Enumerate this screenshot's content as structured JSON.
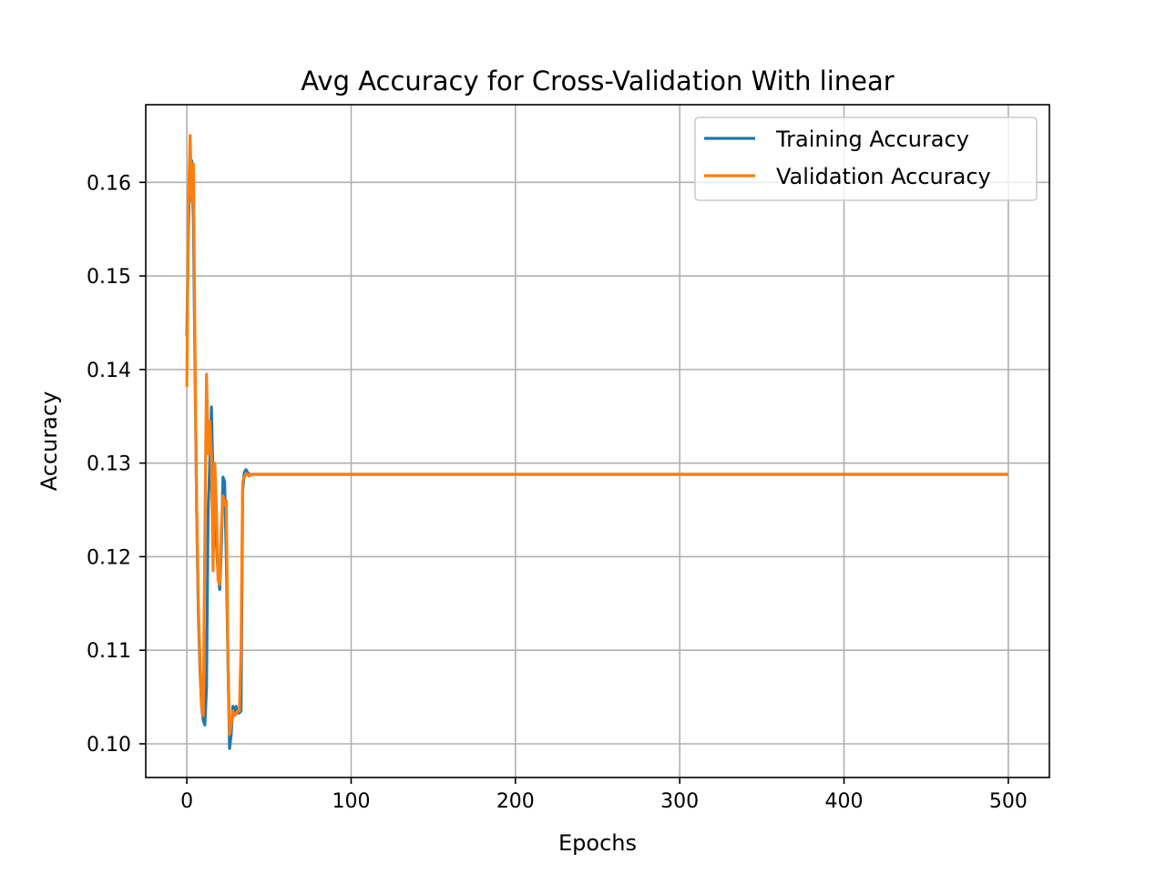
{
  "chart_data": {
    "type": "line",
    "title": "Avg Accuracy for Cross-Validation With linear",
    "xlabel": "Epochs",
    "ylabel": "Accuracy",
    "xlim": [
      -25,
      525
    ],
    "ylim": [
      0.0964,
      0.1683
    ],
    "xticks": [
      0,
      100,
      200,
      300,
      400,
      500
    ],
    "yticks": [
      0.1,
      0.11,
      0.12,
      0.13,
      0.14,
      0.15,
      0.16
    ],
    "xtick_labels": [
      "0",
      "100",
      "200",
      "300",
      "400",
      "500"
    ],
    "ytick_labels": [
      "0.10",
      "0.11",
      "0.12",
      "0.13",
      "0.14",
      "0.15",
      "0.16"
    ],
    "grid": true,
    "legend_position": "top-right",
    "series": [
      {
        "name": "Training Accuracy",
        "color": "#1f77b4",
        "x": [
          0,
          1,
          2,
          3,
          4,
          5,
          6,
          7,
          8,
          9,
          10,
          11,
          12,
          13,
          14,
          15,
          16,
          17,
          18,
          19,
          20,
          21,
          22,
          23,
          24,
          25,
          26,
          27,
          28,
          29,
          30,
          31,
          32,
          33,
          34,
          35,
          36,
          37,
          38,
          39,
          40,
          42,
          44,
          46,
          48,
          50,
          60,
          100,
          200,
          300,
          400,
          499
        ],
        "y": [
          0.1437,
          0.155,
          0.1625,
          0.1623,
          0.156,
          0.14,
          0.125,
          0.114,
          0.108,
          0.104,
          0.1025,
          0.102,
          0.106,
          0.125,
          0.13,
          0.136,
          0.128,
          0.122,
          0.1215,
          0.118,
          0.1165,
          0.121,
          0.1285,
          0.128,
          0.12,
          0.109,
          0.0995,
          0.101,
          0.104,
          0.1035,
          0.104,
          0.1033,
          0.1033,
          0.1035,
          0.127,
          0.129,
          0.1293,
          0.129,
          0.1288,
          0.1287,
          0.1288,
          0.1288,
          0.1288,
          0.1288,
          0.1288,
          0.1288,
          0.1288,
          0.1288,
          0.1288,
          0.1288,
          0.1288,
          0.1288
        ]
      },
      {
        "name": "Validation Accuracy",
        "color": "#ff7f0e",
        "x": [
          0,
          1,
          2,
          3,
          4,
          5,
          6,
          7,
          8,
          9,
          10,
          11,
          12,
          13,
          14,
          15,
          16,
          17,
          18,
          19,
          20,
          21,
          22,
          23,
          24,
          25,
          26,
          27,
          28,
          29,
          30,
          31,
          32,
          33,
          34,
          35,
          36,
          37,
          38,
          39,
          40,
          42,
          44,
          46,
          48,
          50,
          60,
          100,
          200,
          300,
          400,
          499
        ],
        "y": [
          0.1383,
          0.158,
          0.165,
          0.158,
          0.162,
          0.142,
          0.125,
          0.115,
          0.109,
          0.104,
          0.103,
          0.1225,
          0.1395,
          0.131,
          0.1345,
          0.1305,
          0.1185,
          0.13,
          0.125,
          0.1175,
          0.117,
          0.123,
          0.1265,
          0.1255,
          0.126,
          0.1095,
          0.101,
          0.102,
          0.1035,
          0.103,
          0.1032,
          0.1035,
          0.1035,
          0.11,
          0.128,
          0.1285,
          0.1289,
          0.1288,
          0.1286,
          0.1288,
          0.1288,
          0.1288,
          0.1288,
          0.1288,
          0.1288,
          0.1288,
          0.1288,
          0.1288,
          0.1288,
          0.1288,
          0.1288,
          0.1288
        ]
      }
    ]
  }
}
